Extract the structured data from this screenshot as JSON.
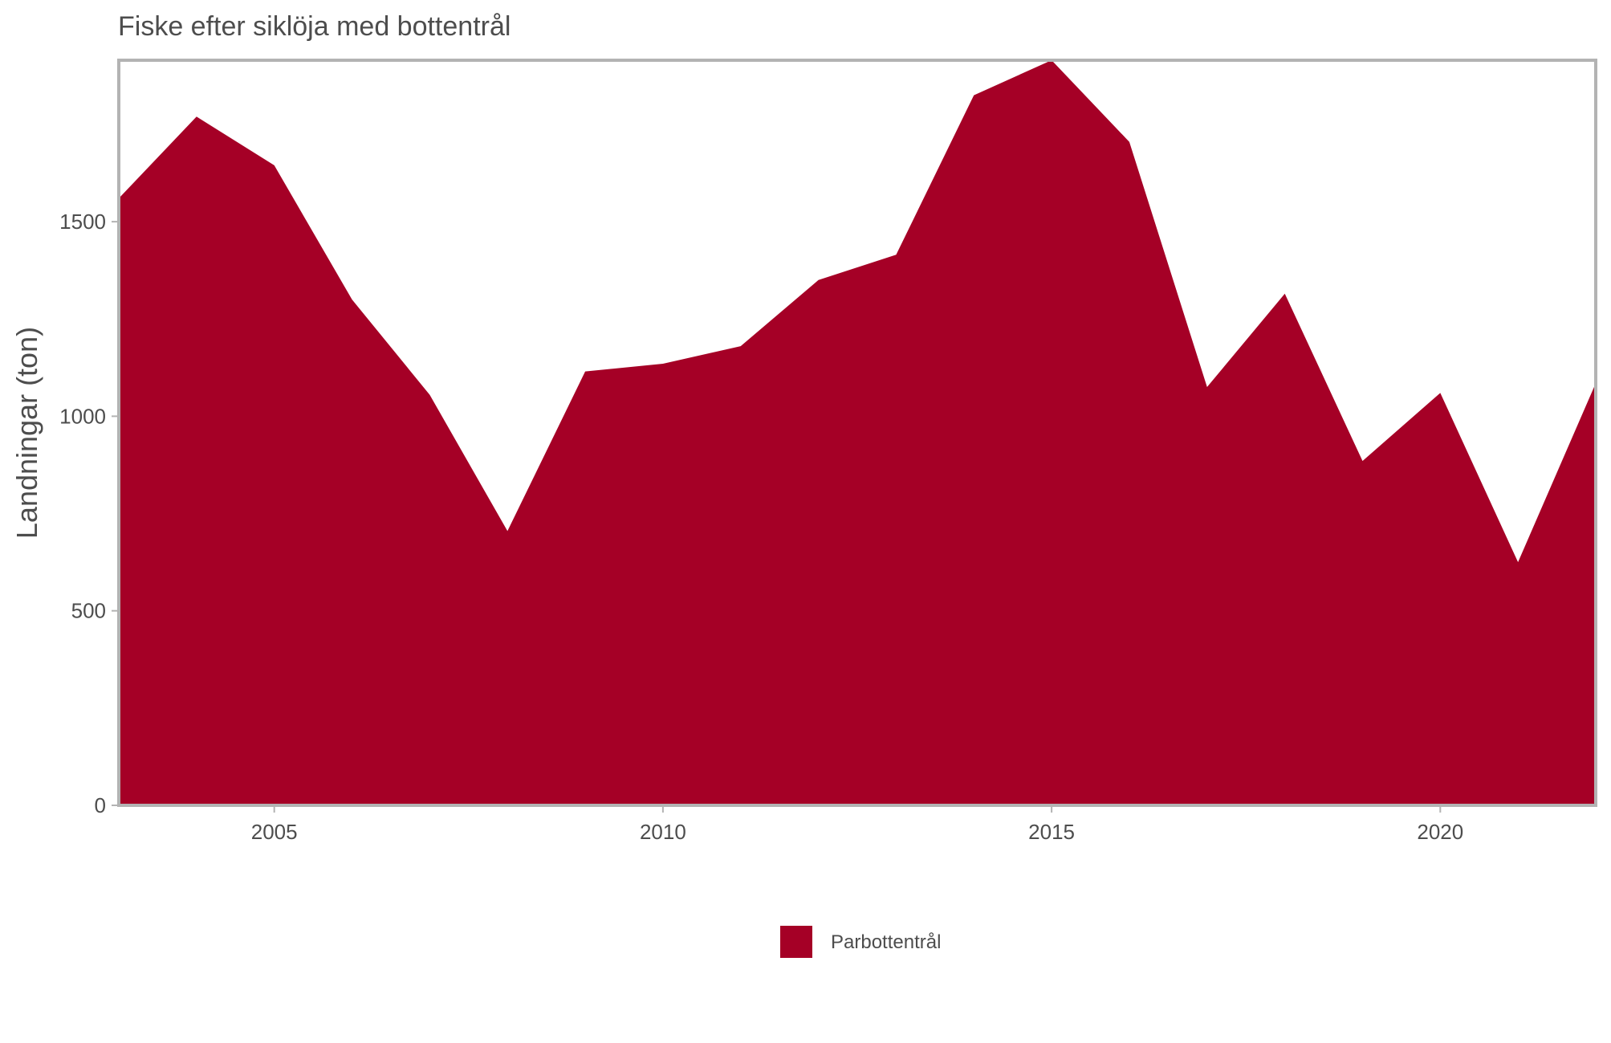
{
  "chart_data": {
    "type": "area",
    "title": "Fiske efter siklöja med bottentrål",
    "xlabel": "",
    "ylabel": "Landningar (ton)",
    "xlim": [
      2003,
      2022
    ],
    "ylim": [
      0,
      1915
    ],
    "x_ticks": [
      2005,
      2010,
      2015,
      2020
    ],
    "y_ticks": [
      0,
      500,
      1000,
      1500
    ],
    "grid": false,
    "legend_position": "bottom",
    "x": [
      2003,
      2004,
      2005,
      2006,
      2007,
      2008,
      2009,
      2010,
      2011,
      2012,
      2013,
      2014,
      2015,
      2016,
      2017,
      2018,
      2019,
      2020,
      2021,
      2022
    ],
    "series": [
      {
        "name": "Parbottentrål",
        "color": "#a50026",
        "values": [
          1560,
          1770,
          1645,
          1300,
          1055,
          705,
          1115,
          1135,
          1180,
          1350,
          1415,
          1825,
          1915,
          1705,
          1075,
          1315,
          885,
          1060,
          625,
          1085
        ]
      }
    ]
  },
  "colors": {
    "fill": "#a50026",
    "panel_border": "#b3b3b3",
    "text": "#4d4d4d"
  }
}
